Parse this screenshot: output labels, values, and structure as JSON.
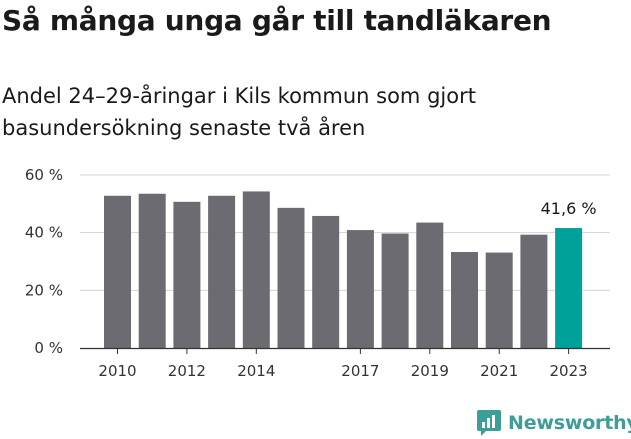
{
  "title": "Så många unga går till tandläkaren",
  "subtitle": "Andel 24–29-åringar i Kils kommun som gjort basundersökning senaste två åren",
  "brand": {
    "name": "Newsworthy",
    "icon": "newsworthy-logo-icon",
    "color": "#3d9e98"
  },
  "colors": {
    "bar": "#6d6b72",
    "highlight": "#00a19a",
    "grid": "#d5d5d5",
    "axis": "#333333"
  },
  "chart_data": {
    "type": "bar",
    "title": "Så många unga går till tandläkaren",
    "xlabel": "",
    "ylabel": "",
    "categories": [
      "2010",
      "2011",
      "2012",
      "2013",
      "2014",
      "2015",
      "2016",
      "2017",
      "2018",
      "2019",
      "2020",
      "2021",
      "2022",
      "2023"
    ],
    "values": [
      52.8,
      53.5,
      50.7,
      52.8,
      54.3,
      48.6,
      45.8,
      40.9,
      39.7,
      43.5,
      33.3,
      33.1,
      39.3,
      41.6
    ],
    "highlight_index": 13,
    "highlight_label": "41,6 %",
    "ylim": [
      0,
      60
    ],
    "yticks": [
      0,
      20,
      40,
      60
    ],
    "ytick_labels": [
      "0 %",
      "20 %",
      "40 %",
      "60 %"
    ],
    "xtick_labels": [
      "2010",
      "2012",
      "2014",
      "2017",
      "2019",
      "2021",
      "2023"
    ],
    "grid": true,
    "legend": "none"
  }
}
